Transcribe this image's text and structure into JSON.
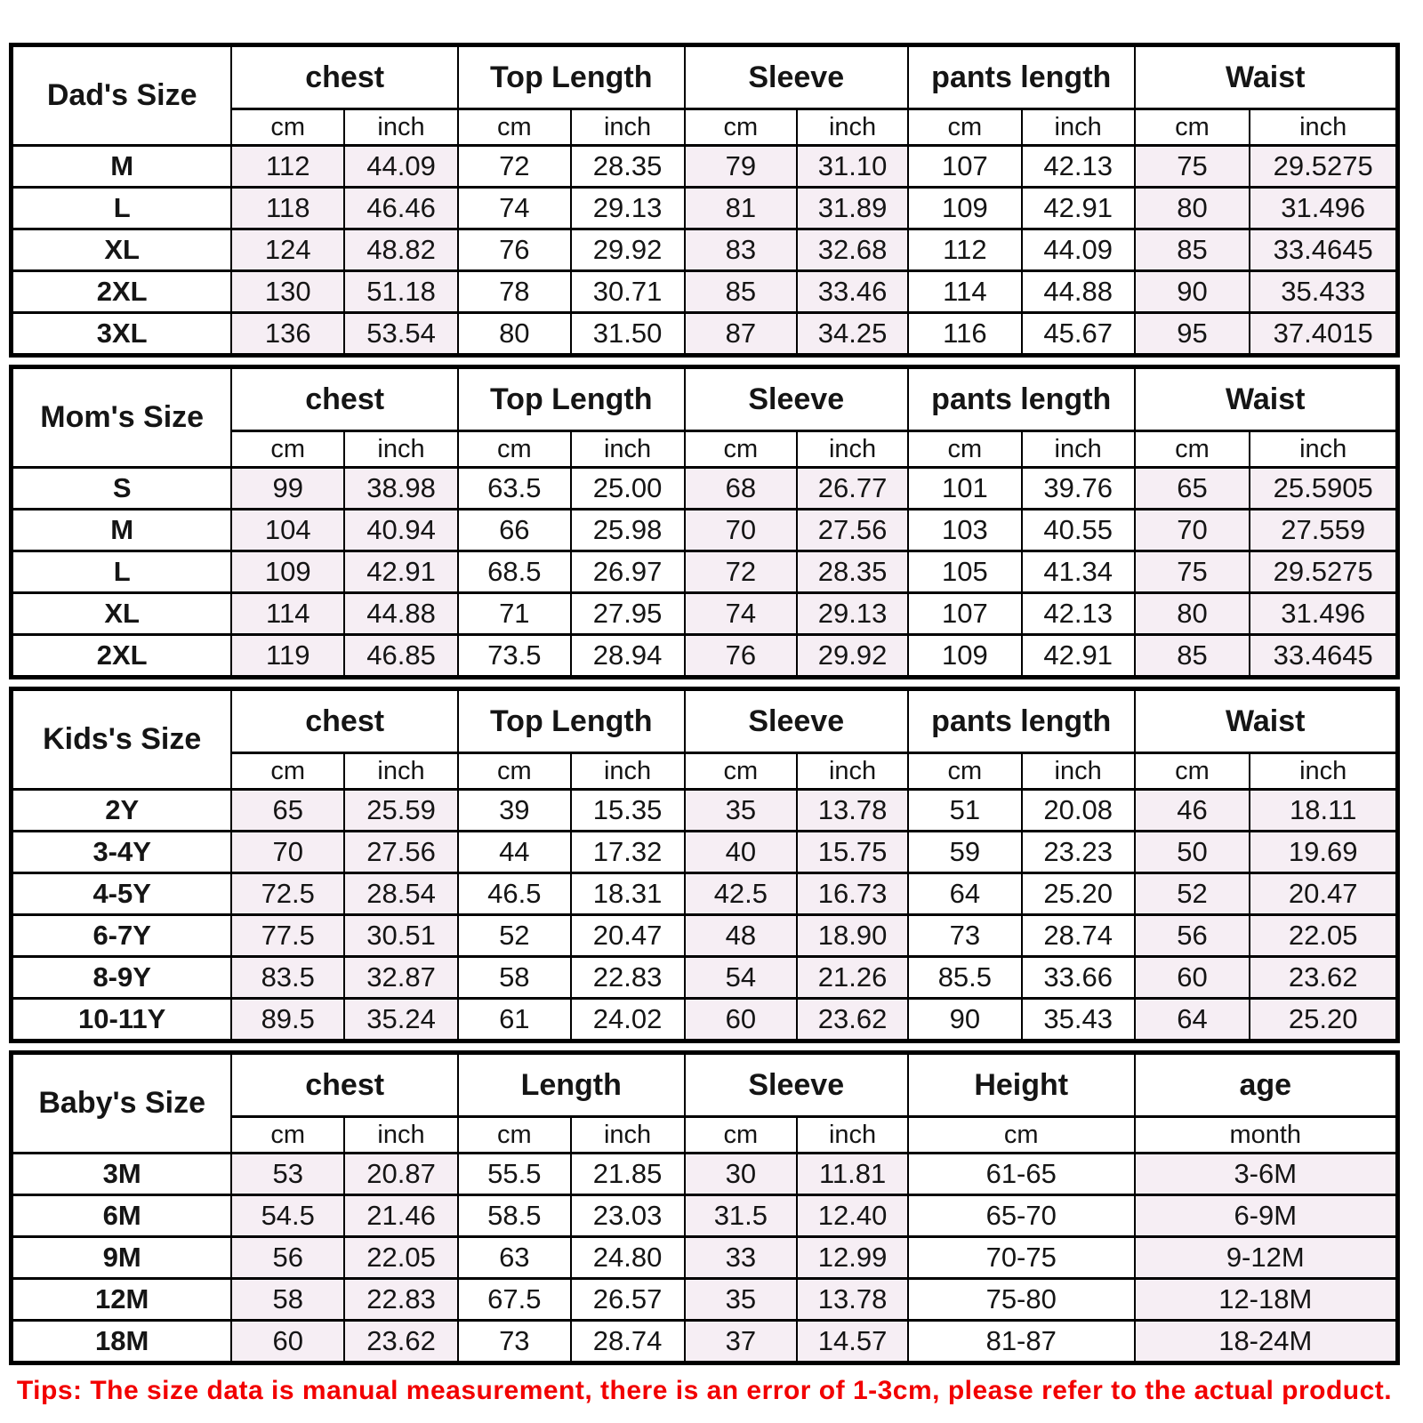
{
  "page": {
    "background": "#ffffff",
    "text_color": "#151515",
    "shade_color": "#f6eef4",
    "border_color": "#000000",
    "tip_color": "#f20000",
    "tip": "Tips: The size data is manual measurement, there is an error of 1-3cm, please refer to the actual product."
  },
  "tables": [
    {
      "id": "dads",
      "label": "Dad's Size",
      "groups": [
        {
          "label": "chest",
          "shaded": true,
          "cols": [
            {
              "unit": "cm",
              "span": 1
            },
            {
              "unit": "inch",
              "span": 1
            }
          ]
        },
        {
          "label": "Top Length",
          "shaded": false,
          "cols": [
            {
              "unit": "cm",
              "span": 1
            },
            {
              "unit": "inch",
              "span": 1
            }
          ]
        },
        {
          "label": "Sleeve",
          "shaded": true,
          "cols": [
            {
              "unit": "cm",
              "span": 1
            },
            {
              "unit": "inch",
              "span": 1
            }
          ]
        },
        {
          "label": "pants length",
          "shaded": false,
          "cols": [
            {
              "unit": "cm",
              "span": 1
            },
            {
              "unit": "inch",
              "span": 1
            }
          ]
        },
        {
          "label": "Waist",
          "shaded": true,
          "cols": [
            {
              "unit": "cm",
              "span": 1
            },
            {
              "unit": "inch",
              "span": 1
            }
          ]
        }
      ],
      "rows": [
        {
          "size": "M",
          "values": [
            "112",
            "44.09",
            "72",
            "28.35",
            "79",
            "31.10",
            "107",
            "42.13",
            "75",
            "29.5275"
          ]
        },
        {
          "size": "L",
          "values": [
            "118",
            "46.46",
            "74",
            "29.13",
            "81",
            "31.89",
            "109",
            "42.91",
            "80",
            "31.496"
          ]
        },
        {
          "size": "XL",
          "values": [
            "124",
            "48.82",
            "76",
            "29.92",
            "83",
            "32.68",
            "112",
            "44.09",
            "85",
            "33.4645"
          ]
        },
        {
          "size": "2XL",
          "values": [
            "130",
            "51.18",
            "78",
            "30.71",
            "85",
            "33.46",
            "114",
            "44.88",
            "90",
            "35.433"
          ]
        },
        {
          "size": "3XL",
          "values": [
            "136",
            "53.54",
            "80",
            "31.50",
            "87",
            "34.25",
            "116",
            "45.67",
            "95",
            "37.4015"
          ]
        }
      ]
    },
    {
      "id": "moms",
      "label": "Mom's Size",
      "groups": [
        {
          "label": "chest",
          "shaded": true,
          "cols": [
            {
              "unit": "cm",
              "span": 1
            },
            {
              "unit": "inch",
              "span": 1
            }
          ]
        },
        {
          "label": "Top Length",
          "shaded": false,
          "cols": [
            {
              "unit": "cm",
              "span": 1
            },
            {
              "unit": "inch",
              "span": 1
            }
          ]
        },
        {
          "label": "Sleeve",
          "shaded": true,
          "cols": [
            {
              "unit": "cm",
              "span": 1
            },
            {
              "unit": "inch",
              "span": 1
            }
          ]
        },
        {
          "label": "pants length",
          "shaded": false,
          "cols": [
            {
              "unit": "cm",
              "span": 1
            },
            {
              "unit": "inch",
              "span": 1
            }
          ]
        },
        {
          "label": "Waist",
          "shaded": true,
          "cols": [
            {
              "unit": "cm",
              "span": 1
            },
            {
              "unit": "inch",
              "span": 1
            }
          ]
        }
      ],
      "rows": [
        {
          "size": "S",
          "values": [
            "99",
            "38.98",
            "63.5",
            "25.00",
            "68",
            "26.77",
            "101",
            "39.76",
            "65",
            "25.5905"
          ]
        },
        {
          "size": "M",
          "values": [
            "104",
            "40.94",
            "66",
            "25.98",
            "70",
            "27.56",
            "103",
            "40.55",
            "70",
            "27.559"
          ]
        },
        {
          "size": "L",
          "values": [
            "109",
            "42.91",
            "68.5",
            "26.97",
            "72",
            "28.35",
            "105",
            "41.34",
            "75",
            "29.5275"
          ]
        },
        {
          "size": "XL",
          "values": [
            "114",
            "44.88",
            "71",
            "27.95",
            "74",
            "29.13",
            "107",
            "42.13",
            "80",
            "31.496"
          ]
        },
        {
          "size": "2XL",
          "values": [
            "119",
            "46.85",
            "73.5",
            "28.94",
            "76",
            "29.92",
            "109",
            "42.91",
            "85",
            "33.4645"
          ]
        }
      ]
    },
    {
      "id": "kids",
      "label": "Kids's Size",
      "groups": [
        {
          "label": "chest",
          "shaded": true,
          "cols": [
            {
              "unit": "cm",
              "span": 1
            },
            {
              "unit": "inch",
              "span": 1
            }
          ]
        },
        {
          "label": "Top Length",
          "shaded": false,
          "cols": [
            {
              "unit": "cm",
              "span": 1
            },
            {
              "unit": "inch",
              "span": 1
            }
          ]
        },
        {
          "label": "Sleeve",
          "shaded": true,
          "cols": [
            {
              "unit": "cm",
              "span": 1
            },
            {
              "unit": "inch",
              "span": 1
            }
          ]
        },
        {
          "label": "pants length",
          "shaded": false,
          "cols": [
            {
              "unit": "cm",
              "span": 1
            },
            {
              "unit": "inch",
              "span": 1
            }
          ]
        },
        {
          "label": "Waist",
          "shaded": true,
          "cols": [
            {
              "unit": "cm",
              "span": 1
            },
            {
              "unit": "inch",
              "span": 1
            }
          ]
        }
      ],
      "rows": [
        {
          "size": "2Y",
          "values": [
            "65",
            "25.59",
            "39",
            "15.35",
            "35",
            "13.78",
            "51",
            "20.08",
            "46",
            "18.11"
          ]
        },
        {
          "size": "3-4Y",
          "values": [
            "70",
            "27.56",
            "44",
            "17.32",
            "40",
            "15.75",
            "59",
            "23.23",
            "50",
            "19.69"
          ]
        },
        {
          "size": "4-5Y",
          "values": [
            "72.5",
            "28.54",
            "46.5",
            "18.31",
            "42.5",
            "16.73",
            "64",
            "25.20",
            "52",
            "20.47"
          ]
        },
        {
          "size": "6-7Y",
          "values": [
            "77.5",
            "30.51",
            "52",
            "20.47",
            "48",
            "18.90",
            "73",
            "28.74",
            "56",
            "22.05"
          ]
        },
        {
          "size": "8-9Y",
          "values": [
            "83.5",
            "32.87",
            "58",
            "22.83",
            "54",
            "21.26",
            "85.5",
            "33.66",
            "60",
            "23.62"
          ]
        },
        {
          "size": "10-11Y",
          "values": [
            "89.5",
            "35.24",
            "61",
            "24.02",
            "60",
            "23.62",
            "90",
            "35.43",
            "64",
            "25.20"
          ]
        }
      ]
    },
    {
      "id": "babys",
      "label": "Baby's Size",
      "groups": [
        {
          "label": "chest",
          "shaded": true,
          "cols": [
            {
              "unit": "cm",
              "span": 1
            },
            {
              "unit": "inch",
              "span": 1
            }
          ]
        },
        {
          "label": "Length",
          "shaded": false,
          "cols": [
            {
              "unit": "cm",
              "span": 1
            },
            {
              "unit": "inch",
              "span": 1
            }
          ]
        },
        {
          "label": "Sleeve",
          "shaded": true,
          "cols": [
            {
              "unit": "cm",
              "span": 1
            },
            {
              "unit": "inch",
              "span": 1
            }
          ]
        },
        {
          "label": "Height",
          "shaded": false,
          "cols": [
            {
              "unit": "cm",
              "span": 2
            }
          ]
        },
        {
          "label": "age",
          "shaded": true,
          "cols": [
            {
              "unit": "month",
              "span": 2
            }
          ]
        }
      ],
      "rows": [
        {
          "size": "3M",
          "values": [
            "53",
            "20.87",
            "55.5",
            "21.85",
            "30",
            "11.81",
            "61-65",
            "3-6M"
          ]
        },
        {
          "size": "6M",
          "values": [
            "54.5",
            "21.46",
            "58.5",
            "23.03",
            "31.5",
            "12.40",
            "65-70",
            "6-9M"
          ]
        },
        {
          "size": "9M",
          "values": [
            "56",
            "22.05",
            "63",
            "24.80",
            "33",
            "12.99",
            "70-75",
            "9-12M"
          ]
        },
        {
          "size": "12M",
          "values": [
            "58",
            "22.83",
            "67.5",
            "26.57",
            "35",
            "13.78",
            "75-80",
            "12-18M"
          ]
        },
        {
          "size": "18M",
          "values": [
            "60",
            "23.62",
            "73",
            "28.74",
            "37",
            "14.57",
            "81-87",
            "18-24M"
          ]
        }
      ]
    }
  ]
}
